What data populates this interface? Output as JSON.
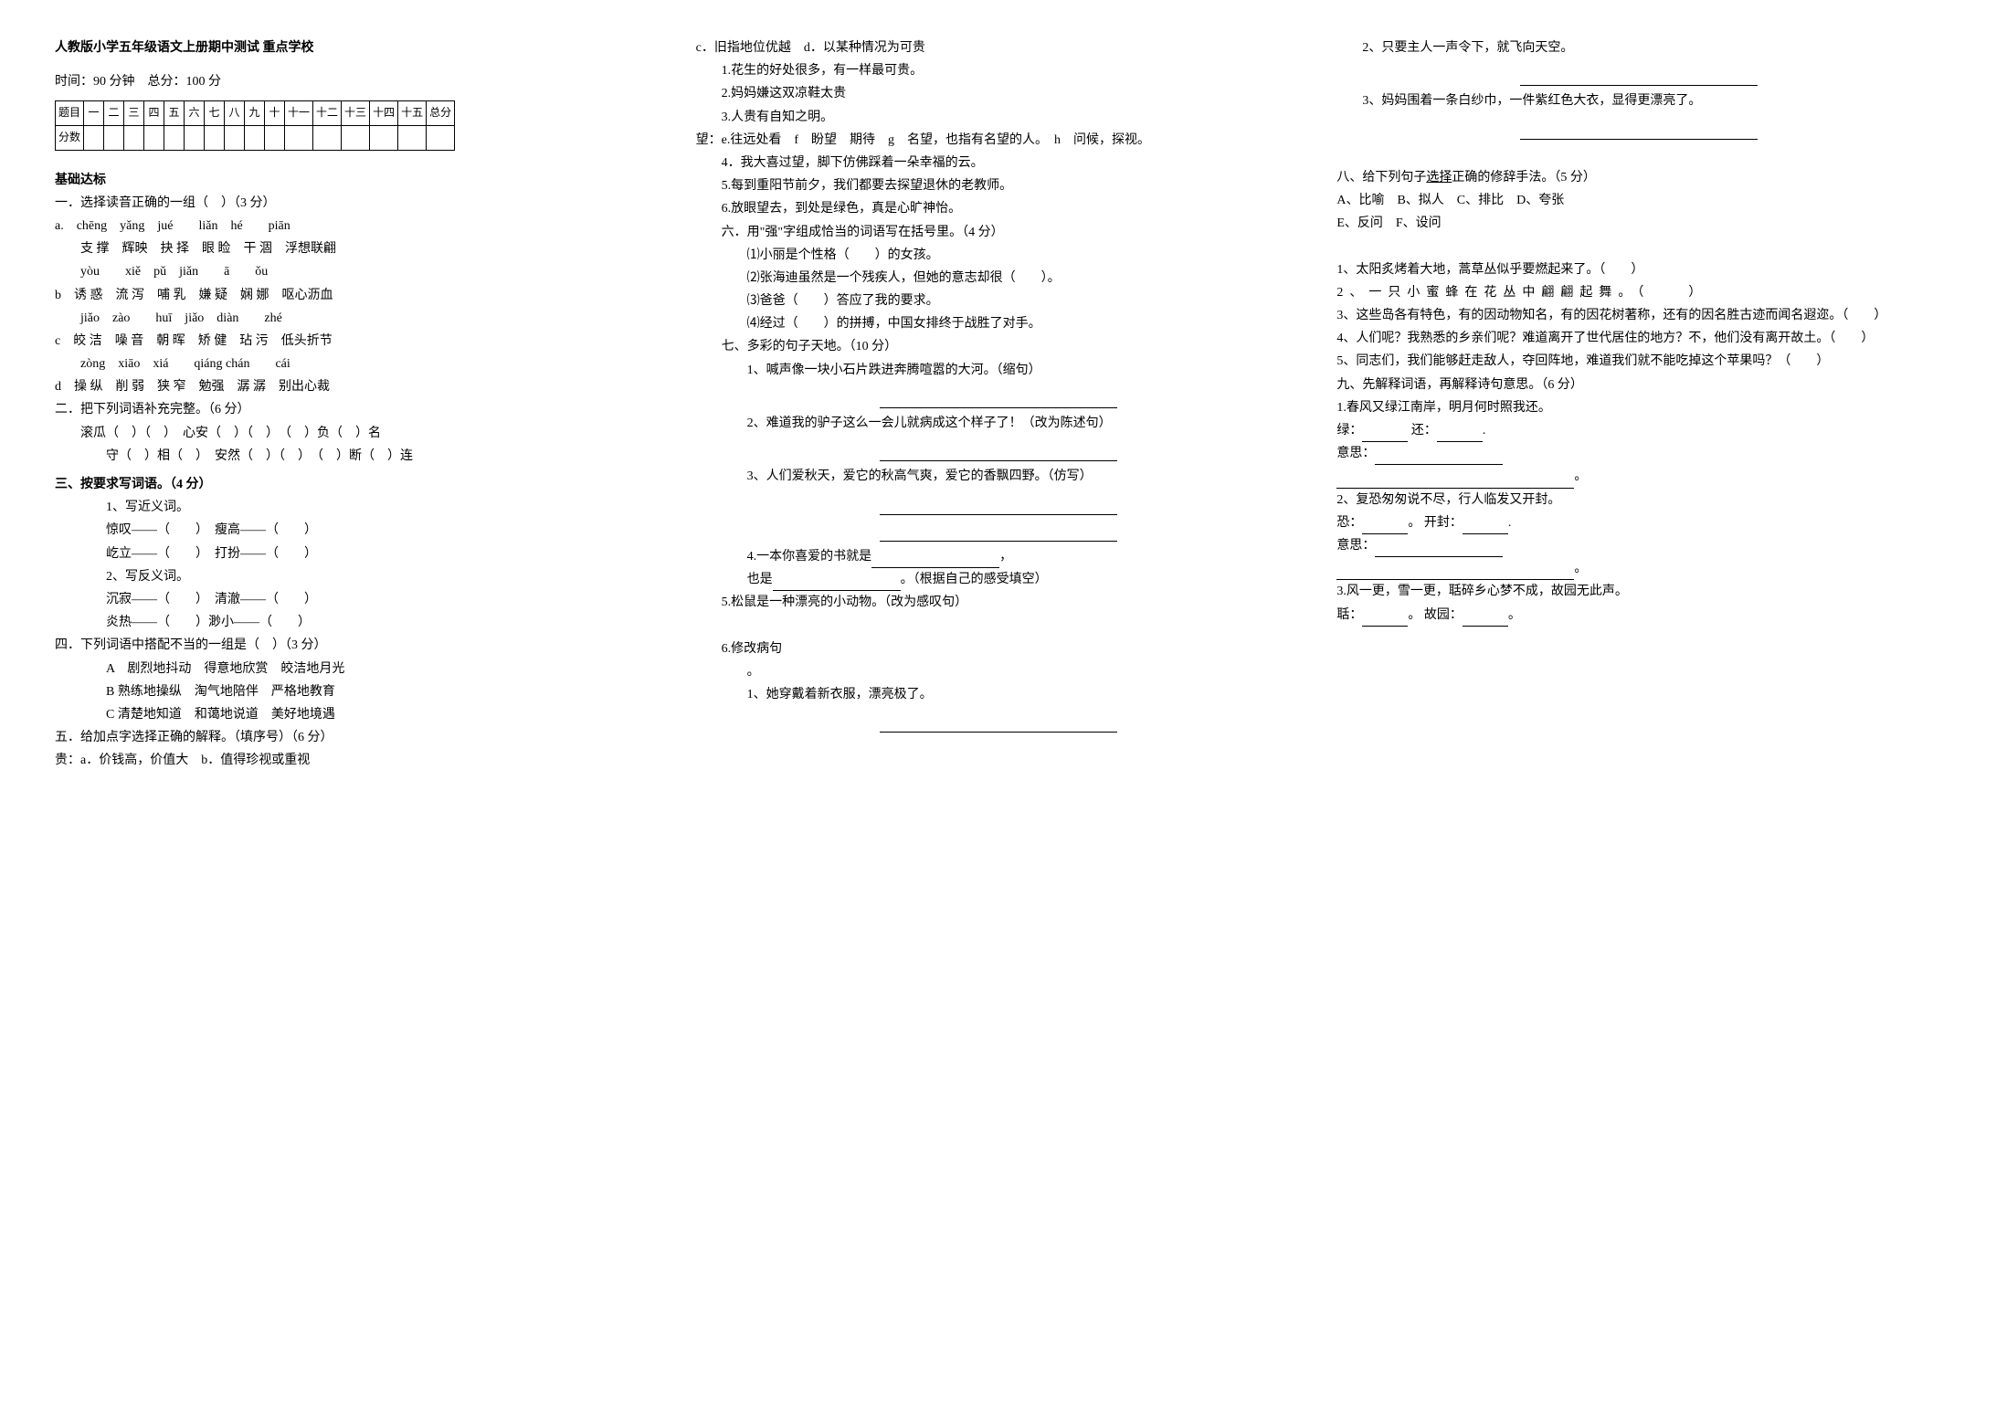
{
  "header": {
    "title": "人教版小学五年级语文上册期中测试 重点学校",
    "time_label": "时间：90 分钟",
    "total_label": "总分：100 分"
  },
  "score_table": {
    "row1": [
      "题目",
      "一",
      "二",
      "三",
      "四",
      "五",
      "六",
      "七",
      "八",
      "九",
      "十",
      "十一",
      "十二",
      "十三",
      "十四",
      "十五",
      "总分"
    ],
    "row2_label": "分数"
  },
  "col1": {
    "base_title": "基础达标",
    "q1_head": "一．选择读音正确的一组（　）（3 分）",
    "q1_a1": "a.　chēng　yǎng　jué　　liǎn　hé　　piān",
    "q1_a2": "　　支 撑　辉映　抉 择　眼 睑　干 涸　浮想联翩",
    "q1_b1": "　　yòu　　xiě　pǔ　jiǎn　　ā　　ǒu",
    "q1_b2": "b　诱 惑　流 泻　哺 乳　嫌 疑　娴 娜　呕心沥血",
    "q1_c1": "　　jiǎo　zào　　huī　jiǎo　diàn　　zhé",
    "q1_c2": "c　皎 洁　噪 音　朝 晖　矫 健　玷 污　低头折节",
    "q1_d1": "　　zòng　xiāo　xiá　　qiáng chán　　cái",
    "q1_d2": "d　操 纵　削 弱　狭 窄　勉强　潺 潺　别出心裁",
    "q2_head": "二．把下列词语补充完整。（6 分）",
    "q2_l1": "滚瓜（　）（　）　心安（　）（　）　（　）负（　）名",
    "q2_l2": "守（　）相（　）　安然（　）（　）　（　）断（　）连",
    "q3_head": "三、按要求写词语。（4 分）",
    "q3_1": "1、写近义词。",
    "q3_1a": "惊叹——（　　）　瘦高——（　　）",
    "q3_1b": "屹立——（　　）　打扮——（　　）",
    "q3_2": "2、写反义词。",
    "q3_2a": "沉寂——（　　）　清澈——（　　）",
    "q3_2b": "炎热——（　　）渺小——（　　）",
    "q4_head": "四．下列词语中搭配不当的一组是（　）（3 分）",
    "q4_a": "A　剧烈地抖动　得意地欣赏　皎洁地月光",
    "q4_b": "B 熟练地操纵　淘气地陪伴　严格地教育",
    "q4_c": "C 清楚地知道　和蔼地说道　美好地境遇",
    "q5_head": "五．给加点字选择正确的解释。（填序号）（6 分）",
    "q5_gui": "贵：a．价钱高，价值大　b．值得珍视或重视"
  },
  "col2": {
    "q5_gui2": "c．旧指地位优越　d．以某种情况为可贵",
    "q5_g1": "1.花生的好处很多，有一样最可贵。",
    "q5_g2": "2.妈妈嫌这双凉鞋太贵",
    "q5_g3": "3.人贵有自知之明。",
    "q5_wang": "望：e.往远处看　f　盼望　期待　g　名望，也指有名望的人。　h　问候，探视。",
    "q5_w4": "4．我大喜过望，脚下仿佛踩着一朵幸福的云。",
    "q5_w5": "5.每到重阳节前夕，我们都要去探望退休的老教师。",
    "q5_w6": "6.放眼望去，到处是绿色，真是心旷神怡。",
    "q6_head": "六．用\"强\"字组成恰当的词语写在括号里。（4 分）",
    "q6_1": "⑴小丽是个性格（　　）的女孩。",
    "q6_2": "⑵张海迪虽然是一个残疾人，但她的意志却很（　　）。",
    "q6_3": "⑶爸爸（　　）答应了我的要求。",
    "q6_4": "⑷经过（　　）的拼搏，中国女排终于战胜了对手。",
    "q7_head": "七、多彩的句子天地。（10 分）",
    "q7_1": "1、喊声像一块小石片跌进奔腾喧嚣的大河。（缩句）",
    "q7_2": "2、难道我的驴子这么一会儿就病成这个样子了！（改为陈述句）",
    "q7_3": "3、人们爱秋天，爱它的秋高气爽，爱它的香飘四野。（仿写）",
    "q7_4": "4.一本你喜爱的书就是",
    "q7_4b": "也是",
    "q7_4c": "。（根据自己的感受填空）",
    "q7_5": "5.松鼠是一种漂亮的小动物。（改为感叹句）",
    "q7_6": "6.修改病句",
    "q7_6a": "1、她穿戴着新衣服，漂亮极了。"
  },
  "col3": {
    "q7_6b": "2、只要主人一声令下，就飞向天空。",
    "q7_6c": "3、妈妈围着一条白纱巾，一件紫红色大衣，显得更漂亮了。",
    "q8_head": "八、给下列句子选择正确的修辞手法。（5 分）",
    "q8_opts": "A、比喻　B、拟人　C、排比　D、夸张",
    "q8_opts2": "E、反问　F、设问",
    "q8_1": "1、太阳炙烤着大地，蒿草丛似乎要燃起来了。（　　）",
    "q8_2": "2、一只小蜜蜂在花丛中翩翩起舞。（　　）",
    "q8_3": "3、这些岛各有特色，有的因动物知名，有的因花树著称，还有的因名胜古迹而闻名遐迩。（　　）",
    "q8_4": "4、人们呢？我熟悉的乡亲们呢？难道离开了世代居住的地方？不，他们没有离开故土。（　　）",
    "q8_5": "5、同志们，我们能够赶走敌人，夺回阵地，难道我们就不能吃掉这个苹果吗？（　　）",
    "q9_head": "九、先解释词语，再解释诗句意思。（6 分）",
    "q9_1": "1.春风又绿江南岸，明月何时照我还。",
    "q9_1a": "绿：",
    "q9_1b": "还：",
    "q9_1c": "意思：",
    "q9_2": "2、复恐匆匆说不尽，行人临发又开封。",
    "q9_2a": "恐：",
    "q9_2b": "开封：",
    "q9_2c": "意思：",
    "q9_3": "3.风一更，雪一更，聒碎乡心梦不成，故园无此声。",
    "q9_3a": "聒：",
    "q9_3b": "故园："
  }
}
